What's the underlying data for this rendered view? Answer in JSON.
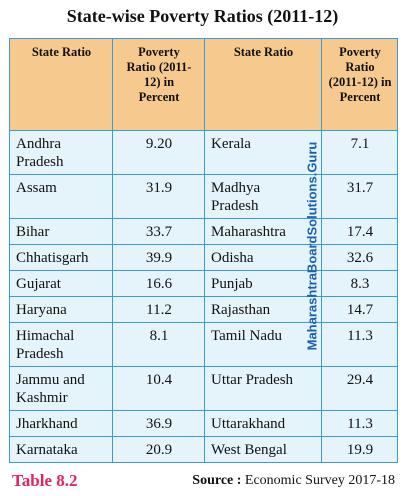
{
  "title": "State-wise Poverty Ratios (2011-12)",
  "table": {
    "header": [
      "State Ratio",
      "Poverty Ratio (2011-12) in Percent",
      "State Ratio",
      "Poverty Ratio (2011-12) in Percent"
    ],
    "rows": [
      [
        "Andhra Pradesh",
        "9.20",
        "Kerala",
        "7.1"
      ],
      [
        "Assam",
        "31.9",
        "Madhya Pradesh",
        "31.7"
      ],
      [
        "Bihar",
        "33.7",
        "Maharashtra",
        "17.4"
      ],
      [
        "Chhatisgarh",
        "39.9",
        "Odisha",
        "32.6"
      ],
      [
        "Gujarat",
        "16.6",
        "Punjab",
        "8.3"
      ],
      [
        "Haryana",
        "11.2",
        "Rajasthan",
        "14.7"
      ],
      [
        "Himachal Pradesh",
        "8.1",
        "Tamil Nadu",
        "11.3"
      ],
      [
        "Jammu and Kashmir",
        "10.4",
        "Uttar Pradesh",
        "29.4"
      ],
      [
        "Jharkhand",
        "36.9",
        "Uttarakhand",
        "11.3"
      ],
      [
        "Karnataka",
        "20.9",
        "West Bengal",
        "19.9"
      ]
    ]
  },
  "footer": {
    "label": "Table 8.2",
    "source_label": "Source :",
    "source": "Economic Survey 2017-18"
  },
  "watermark": "MaharashtraBoardSolutions.Guru"
}
